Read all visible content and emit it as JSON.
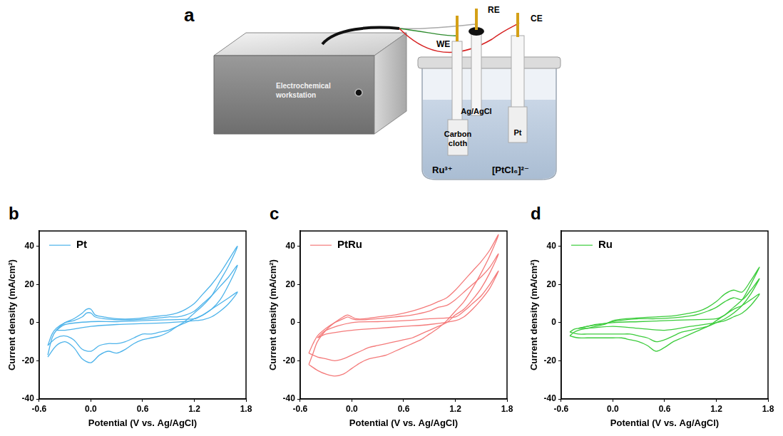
{
  "diagram": {
    "panel": "a",
    "workstation": "Electrochemical workstation",
    "electrodes": {
      "reference": "RE",
      "counter": "CE",
      "working": "WE"
    },
    "reference_material": "Ag/AgCl",
    "working_material": "Carbon cloth",
    "counter_material": "Pt",
    "ions": [
      "Ru³⁺",
      "[PtCl₆]²⁻"
    ]
  },
  "chart_data": [
    {
      "panel": "b",
      "type": "line",
      "x_label": "Potential (V vs. Ag/AgCl)",
      "y_label": "Current density (mA/cm²)",
      "xlim": [
        -0.6,
        1.8
      ],
      "xticks": [
        -0.6,
        {
          "value": 0,
          "label": "0.0"
        },
        0.6,
        1.2,
        1.8
      ],
      "ylim": [
        -40,
        48
      ],
      "yticks": [
        -40,
        -20,
        0,
        20,
        40
      ],
      "grid": false,
      "legend": "upper left",
      "series": [
        {
          "name": "Pt",
          "color": "#4db3ea",
          "x": [
            -0.5,
            -0.45,
            -0.4,
            -0.3,
            -0.2,
            -0.1,
            -0.05,
            0.0,
            0.05,
            0.15,
            0.3,
            0.5,
            0.7,
            0.9,
            1.0,
            1.1,
            1.2,
            1.3,
            1.4,
            1.5,
            1.6,
            1.7,
            1.6,
            1.5,
            1.4,
            1.3,
            1.2,
            1.1,
            1.0,
            0.9,
            0.8,
            0.7,
            0.6,
            0.5,
            0.4,
            0.3,
            0.2,
            0.1,
            0.0,
            -0.1,
            -0.2,
            -0.3,
            -0.4,
            -0.5,
            null,
            -0.5,
            -0.45,
            -0.4,
            -0.3,
            -0.2,
            -0.1,
            -0.05,
            0.0,
            0.05,
            0.15,
            0.3,
            0.5,
            0.7,
            0.9,
            1.0,
            1.1,
            1.2,
            1.3,
            1.4,
            1.5,
            1.6,
            1.7,
            1.6,
            1.5,
            1.4,
            1.3,
            1.2,
            1.1,
            1.0,
            0.9,
            0.8,
            0.7,
            0.6,
            0.5,
            0.4,
            0.3,
            0.2,
            0.1,
            0.0,
            -0.1,
            -0.2,
            -0.3,
            -0.4,
            -0.5,
            null,
            -0.4,
            -0.3,
            0.0,
            0.3,
            0.6,
            0.9,
            1.2,
            1.3,
            1.4,
            1.5,
            1.6,
            1.7,
            1.6,
            1.5,
            1.4,
            1.3,
            1.2,
            0.9,
            0.6,
            0.3,
            0.0,
            -0.3,
            -0.4
          ],
          "values": [
            -17,
            -8,
            -4,
            0,
            2,
            5,
            7,
            7,
            4,
            3,
            2,
            2,
            3,
            4,
            5,
            7,
            10,
            15,
            20,
            26,
            33,
            40,
            30,
            22,
            14,
            9,
            5,
            1,
            -2,
            -5,
            -7,
            -8,
            -9,
            -11,
            -14,
            -16,
            -15,
            -17,
            -21,
            -19,
            -13,
            -10,
            -12,
            -18,
            null,
            -12,
            -6,
            -3,
            0,
            1,
            3,
            5,
            5,
            3,
            2,
            1.5,
            1.5,
            2,
            3,
            3,
            4,
            6,
            10,
            14,
            19,
            24,
            30,
            20,
            12,
            7,
            4,
            2,
            0,
            -2,
            -4,
            -5,
            -6,
            -6,
            -8,
            -10,
            -11,
            -11,
            -12,
            -15,
            -14,
            -9,
            -7,
            -8,
            -12,
            null,
            -4,
            -1,
            0.5,
            0.5,
            1,
            1.5,
            2,
            4,
            7,
            10,
            13,
            16,
            10,
            6,
            3,
            1.5,
            1,
            0,
            -0.5,
            -1,
            -2,
            -4,
            -4
          ]
        }
      ]
    },
    {
      "panel": "c",
      "type": "line",
      "x_label": "Potential (V vs. Ag/AgCl)",
      "y_label": "Current density (mA/cm²)",
      "xlim": [
        -0.6,
        1.8
      ],
      "xticks": [
        -0.6,
        {
          "value": 0,
          "label": "0.0"
        },
        0.6,
        1.2,
        1.8
      ],
      "ylim": [
        -40,
        48
      ],
      "yticks": [
        -40,
        -20,
        0,
        20,
        40
      ],
      "grid": false,
      "legend": "upper left",
      "series": [
        {
          "name": "PtRu",
          "color": "#f47a7a",
          "x": [
            -0.5,
            -0.45,
            -0.4,
            -0.3,
            -0.2,
            -0.1,
            -0.05,
            0.0,
            0.05,
            0.15,
            0.3,
            0.5,
            0.7,
            0.9,
            1.0,
            1.1,
            1.2,
            1.3,
            1.4,
            1.5,
            1.6,
            1.7,
            1.6,
            1.5,
            1.4,
            1.3,
            1.2,
            1.1,
            1.0,
            0.9,
            0.8,
            0.7,
            0.6,
            0.5,
            0.4,
            0.3,
            0.2,
            0.1,
            0.0,
            -0.1,
            -0.2,
            -0.3,
            -0.4,
            -0.5,
            null,
            -0.5,
            -0.45,
            -0.4,
            -0.3,
            -0.2,
            -0.1,
            -0.05,
            0.0,
            0.05,
            0.15,
            0.3,
            0.5,
            0.7,
            0.9,
            1.0,
            1.1,
            1.2,
            1.3,
            1.4,
            1.5,
            1.6,
            1.7,
            1.6,
            1.5,
            1.4,
            1.3,
            1.2,
            1.1,
            1.0,
            0.9,
            0.8,
            0.7,
            0.6,
            0.5,
            0.4,
            0.3,
            0.2,
            0.1,
            0.0,
            -0.1,
            -0.2,
            -0.3,
            -0.4,
            -0.5,
            null,
            -0.4,
            -0.3,
            0.0,
            0.3,
            0.6,
            0.9,
            1.2,
            1.3,
            1.4,
            1.5,
            1.6,
            1.7,
            1.6,
            1.5,
            1.4,
            1.3,
            1.2,
            0.9,
            0.6,
            0.3,
            0.0,
            -0.3,
            -0.4
          ],
          "values": [
            -22,
            -16,
            -10,
            -4,
            0,
            3,
            4,
            3,
            2,
            2,
            3,
            4,
            6,
            9,
            11,
            13,
            17,
            22,
            27,
            32,
            38,
            46,
            35,
            26,
            18,
            11,
            6,
            1,
            -3,
            -6,
            -9,
            -11,
            -13,
            -15,
            -17,
            -18,
            -19,
            -21,
            -24,
            -27,
            -28,
            -27,
            -25,
            -22,
            null,
            -16,
            -11,
            -7,
            -3,
            0,
            2,
            3,
            2,
            1.5,
            1.5,
            2,
            3,
            4,
            6,
            8,
            9,
            12,
            16,
            20,
            24,
            29,
            36,
            26,
            18,
            12,
            7,
            4,
            0,
            -2,
            -4,
            -6,
            -8,
            -9,
            -10,
            -11,
            -12,
            -13,
            -15,
            -17,
            -19,
            -20,
            -19,
            -18,
            -16,
            null,
            -8,
            -4,
            0,
            0.5,
            1,
            2,
            3,
            6,
            10,
            14,
            20,
            27,
            18,
            12,
            7,
            3,
            1,
            -1,
            -2,
            -3,
            -4,
            -6,
            -8
          ]
        }
      ]
    },
    {
      "panel": "d",
      "type": "line",
      "x_label": "Potential (V vs. Ag/AgCl)",
      "y_label": "Current density (mA/cm²)",
      "xlim": [
        -0.6,
        1.8
      ],
      "xticks": [
        -0.6,
        {
          "value": 0,
          "label": "0.0"
        },
        0.6,
        1.2,
        1.8
      ],
      "ylim": [
        -40,
        48
      ],
      "yticks": [
        -40,
        -20,
        0,
        20,
        40
      ],
      "grid": false,
      "legend": "upper left",
      "series": [
        {
          "name": "Ru",
          "color": "#3ccc3c",
          "x": [
            -0.5,
            -0.45,
            -0.4,
            -0.3,
            -0.2,
            -0.1,
            -0.05,
            0.0,
            0.05,
            0.15,
            0.3,
            0.5,
            0.7,
            0.9,
            1.0,
            1.1,
            1.2,
            1.3,
            1.4,
            1.5,
            1.6,
            1.7,
            1.6,
            1.5,
            1.4,
            1.3,
            1.2,
            1.1,
            1.0,
            0.9,
            0.8,
            0.7,
            0.6,
            0.5,
            0.4,
            0.3,
            0.2,
            0.1,
            0.0,
            -0.1,
            -0.2,
            -0.3,
            -0.4,
            -0.5,
            null,
            -0.5,
            -0.45,
            -0.4,
            -0.3,
            -0.2,
            -0.1,
            -0.05,
            0.0,
            0.05,
            0.15,
            0.3,
            0.5,
            0.7,
            0.9,
            1.0,
            1.1,
            1.2,
            1.3,
            1.4,
            1.5,
            1.6,
            1.7,
            1.6,
            1.5,
            1.4,
            1.3,
            1.2,
            1.1,
            1.0,
            0.9,
            0.8,
            0.7,
            0.6,
            0.5,
            0.4,
            0.3,
            0.2,
            0.1,
            0.0,
            -0.1,
            -0.2,
            -0.3,
            -0.4,
            -0.5,
            null,
            -0.4,
            -0.3,
            0.0,
            0.3,
            0.6,
            0.9,
            1.2,
            1.3,
            1.4,
            1.5,
            1.6,
            1.7,
            1.6,
            1.5,
            1.4,
            1.3,
            1.2,
            0.9,
            0.6,
            0.3,
            0.0,
            -0.3,
            -0.4
          ],
          "values": [
            -7,
            -5,
            -4,
            -3,
            -2,
            -1,
            0,
            1,
            1.5,
            2,
            2.5,
            3,
            3.5,
            5,
            6,
            8,
            11,
            15,
            17,
            16,
            22,
            29,
            20,
            12,
            8,
            4,
            1,
            -2,
            -4,
            -6,
            -8,
            -10,
            -13,
            -15,
            -12,
            -10,
            -9,
            -8,
            -8,
            -8,
            -8,
            -8,
            -8,
            -7,
            null,
            -5,
            -3.5,
            -3,
            -2,
            -1,
            -0.5,
            0,
            0.5,
            1,
            1.5,
            2,
            2,
            2.5,
            3.5,
            4.5,
            6,
            8,
            11,
            13,
            12,
            17,
            23,
            15,
            9,
            5,
            2,
            0,
            -2,
            -3,
            -4,
            -5,
            -7,
            -9,
            -10,
            -8,
            -7,
            -6,
            -6,
            -6,
            -6,
            -6,
            -6,
            -6,
            -5,
            null,
            -3,
            -2,
            0,
            0.5,
            1,
            1.5,
            2,
            4,
            7,
            9,
            12,
            15,
            9,
            5,
            3,
            1,
            0,
            -2,
            -4,
            -3,
            -2,
            -3,
            -3
          ]
        }
      ]
    }
  ]
}
